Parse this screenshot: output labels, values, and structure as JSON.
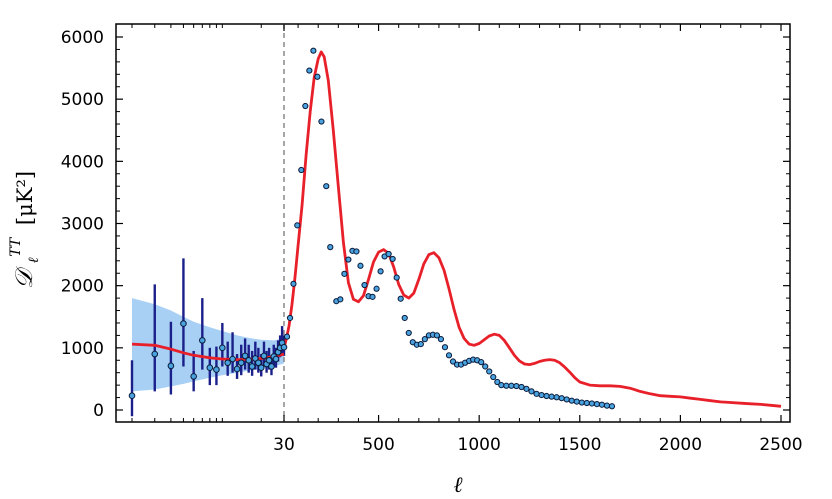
{
  "chart_data": {
    "type": "scatter",
    "xlabel": "ℓ",
    "ylabel": {
      "symbol": "𝒟",
      "subscript": "ℓ",
      "superscript": "TT",
      "units": "[μK²]"
    },
    "x_scale": {
      "low_segment": {
        "type": "log",
        "range": [
          2,
          30
        ]
      },
      "high_segment": {
        "type": "linear",
        "range": [
          30,
          2500
        ]
      }
    },
    "ylim": [
      -200,
      6200
    ],
    "y_ticks": [
      0,
      1000,
      2000,
      3000,
      4000,
      5000,
      6000
    ],
    "x_tick_labels": [
      "30",
      "500",
      "1000",
      "1500",
      "2000",
      "2500"
    ],
    "x_ticks": [
      30,
      500,
      1000,
      1500,
      2000,
      2500
    ],
    "divider_at": 30,
    "colors": {
      "model": "#e8202a",
      "band": "#a8d0f5",
      "errorbars": "#1a1f8a",
      "points": "#4aa3df",
      "divider": "#888888"
    },
    "model_low_ell": [
      {
        "x": 2,
        "y": 1060
      },
      {
        "x": 3,
        "y": 1040
      },
      {
        "x": 4,
        "y": 980
      },
      {
        "x": 5,
        "y": 920
      },
      {
        "x": 6,
        "y": 880
      },
      {
        "x": 8,
        "y": 840
      },
      {
        "x": 10,
        "y": 820
      },
      {
        "x": 13,
        "y": 810
      },
      {
        "x": 16,
        "y": 815
      },
      {
        "x": 20,
        "y": 830
      },
      {
        "x": 25,
        "y": 860
      },
      {
        "x": 30,
        "y": 900
      }
    ],
    "band_low_ell": [
      {
        "x": 2,
        "lo": 300,
        "hi": 1800
      },
      {
        "x": 3,
        "lo": 330,
        "hi": 1700
      },
      {
        "x": 4,
        "lo": 380,
        "hi": 1600
      },
      {
        "x": 5,
        "lo": 420,
        "hi": 1500
      },
      {
        "x": 6,
        "lo": 460,
        "hi": 1420
      },
      {
        "x": 8,
        "lo": 520,
        "hi": 1330
      },
      {
        "x": 10,
        "lo": 560,
        "hi": 1270
      },
      {
        "x": 13,
        "lo": 600,
        "hi": 1200
      },
      {
        "x": 16,
        "lo": 630,
        "hi": 1160
      },
      {
        "x": 20,
        "lo": 660,
        "hi": 1130
      },
      {
        "x": 25,
        "lo": 700,
        "hi": 1120
      },
      {
        "x": 30,
        "lo": 750,
        "hi": 1150
      }
    ],
    "points_low_ell": [
      {
        "x": 2,
        "y": 230,
        "lo": -100,
        "hi": 800
      },
      {
        "x": 3,
        "y": 900,
        "lo": 300,
        "hi": 2020
      },
      {
        "x": 4,
        "y": 710,
        "lo": 250,
        "hi": 1420
      },
      {
        "x": 5,
        "y": 1390,
        "lo": 700,
        "hi": 2440
      },
      {
        "x": 6,
        "y": 540,
        "lo": 300,
        "hi": 950
      },
      {
        "x": 7,
        "y": 1120,
        "lo": 650,
        "hi": 1800
      },
      {
        "x": 8,
        "y": 680,
        "lo": 400,
        "hi": 1000
      },
      {
        "x": 9,
        "y": 650,
        "lo": 400,
        "hi": 1020
      },
      {
        "x": 10,
        "y": 1000,
        "lo": 700,
        "hi": 1400
      },
      {
        "x": 11,
        "y": 760,
        "lo": 550,
        "hi": 1100
      },
      {
        "x": 12,
        "y": 820,
        "lo": 600,
        "hi": 1250
      },
      {
        "x": 13,
        "y": 660,
        "lo": 500,
        "hi": 900
      },
      {
        "x": 14,
        "y": 760,
        "lo": 560,
        "hi": 1050
      },
      {
        "x": 15,
        "y": 870,
        "lo": 650,
        "hi": 1150
      },
      {
        "x": 16,
        "y": 800,
        "lo": 600,
        "hi": 1050
      },
      {
        "x": 17,
        "y": 700,
        "lo": 550,
        "hi": 950
      },
      {
        "x": 18,
        "y": 830,
        "lo": 650,
        "hi": 1100
      },
      {
        "x": 19,
        "y": 760,
        "lo": 600,
        "hi": 1000
      },
      {
        "x": 20,
        "y": 680,
        "lo": 540,
        "hi": 900
      },
      {
        "x": 21,
        "y": 870,
        "lo": 700,
        "hi": 1100
      },
      {
        "x": 22,
        "y": 740,
        "lo": 600,
        "hi": 950
      },
      {
        "x": 23,
        "y": 800,
        "lo": 650,
        "hi": 1000
      },
      {
        "x": 24,
        "y": 700,
        "lo": 560,
        "hi": 880
      },
      {
        "x": 25,
        "y": 860,
        "lo": 700,
        "hi": 1050
      },
      {
        "x": 26,
        "y": 820,
        "lo": 680,
        "hi": 1000
      },
      {
        "x": 27,
        "y": 930,
        "lo": 780,
        "hi": 1120
      },
      {
        "x": 28,
        "y": 1000,
        "lo": 850,
        "hi": 1200
      },
      {
        "x": 29,
        "y": 1080,
        "lo": 900,
        "hi": 1350
      },
      {
        "x": 30,
        "y": 1010,
        "lo": 870,
        "hi": 1200
      }
    ],
    "model_high_ell": [
      {
        "x": 30,
        "y": 1000
      },
      {
        "x": 40,
        "y": 1120
      },
      {
        "x": 55,
        "y": 1350
      },
      {
        "x": 70,
        "y": 1700
      },
      {
        "x": 85,
        "y": 2150
      },
      {
        "x": 100,
        "y": 2650
      },
      {
        "x": 120,
        "y": 3300
      },
      {
        "x": 140,
        "y": 4100
      },
      {
        "x": 160,
        "y": 4800
      },
      {
        "x": 180,
        "y": 5350
      },
      {
        "x": 200,
        "y": 5650
      },
      {
        "x": 215,
        "y": 5760
      },
      {
        "x": 230,
        "y": 5680
      },
      {
        "x": 250,
        "y": 5300
      },
      {
        "x": 275,
        "y": 4500
      },
      {
        "x": 300,
        "y": 3600
      },
      {
        "x": 325,
        "y": 2700
      },
      {
        "x": 350,
        "y": 2050
      },
      {
        "x": 375,
        "y": 1780
      },
      {
        "x": 400,
        "y": 1740
      },
      {
        "x": 425,
        "y": 1840
      },
      {
        "x": 450,
        "y": 2100
      },
      {
        "x": 475,
        "y": 2380
      },
      {
        "x": 500,
        "y": 2540
      },
      {
        "x": 525,
        "y": 2580
      },
      {
        "x": 550,
        "y": 2520
      },
      {
        "x": 575,
        "y": 2300
      },
      {
        "x": 600,
        "y": 2020
      },
      {
        "x": 625,
        "y": 1850
      },
      {
        "x": 650,
        "y": 1800
      },
      {
        "x": 675,
        "y": 1880
      },
      {
        "x": 700,
        "y": 2100
      },
      {
        "x": 725,
        "y": 2350
      },
      {
        "x": 750,
        "y": 2500
      },
      {
        "x": 775,
        "y": 2530
      },
      {
        "x": 800,
        "y": 2450
      },
      {
        "x": 825,
        "y": 2250
      },
      {
        "x": 850,
        "y": 1950
      },
      {
        "x": 875,
        "y": 1620
      },
      {
        "x": 900,
        "y": 1330
      },
      {
        "x": 925,
        "y": 1150
      },
      {
        "x": 950,
        "y": 1060
      },
      {
        "x": 975,
        "y": 1040
      },
      {
        "x": 1000,
        "y": 1070
      },
      {
        "x": 1025,
        "y": 1130
      },
      {
        "x": 1050,
        "y": 1190
      },
      {
        "x": 1075,
        "y": 1220
      },
      {
        "x": 1100,
        "y": 1200
      },
      {
        "x": 1125,
        "y": 1120
      },
      {
        "x": 1150,
        "y": 1000
      },
      {
        "x": 1175,
        "y": 880
      },
      {
        "x": 1200,
        "y": 790
      },
      {
        "x": 1225,
        "y": 740
      },
      {
        "x": 1250,
        "y": 730
      },
      {
        "x": 1275,
        "y": 750
      },
      {
        "x": 1300,
        "y": 780
      },
      {
        "x": 1325,
        "y": 800
      },
      {
        "x": 1350,
        "y": 810
      },
      {
        "x": 1375,
        "y": 800
      },
      {
        "x": 1400,
        "y": 760
      },
      {
        "x": 1425,
        "y": 690
      },
      {
        "x": 1450,
        "y": 610
      },
      {
        "x": 1475,
        "y": 520
      },
      {
        "x": 1500,
        "y": 450
      },
      {
        "x": 1550,
        "y": 400
      },
      {
        "x": 1600,
        "y": 390
      },
      {
        "x": 1650,
        "y": 390
      },
      {
        "x": 1700,
        "y": 380
      },
      {
        "x": 1750,
        "y": 350
      },
      {
        "x": 1800,
        "y": 300
      },
      {
        "x": 1850,
        "y": 260
      },
      {
        "x": 1900,
        "y": 230
      },
      {
        "x": 1950,
        "y": 220
      },
      {
        "x": 2000,
        "y": 210
      },
      {
        "x": 2050,
        "y": 190
      },
      {
        "x": 2100,
        "y": 170
      },
      {
        "x": 2150,
        "y": 150
      },
      {
        "x": 2200,
        "y": 130
      },
      {
        "x": 2250,
        "y": 120
      },
      {
        "x": 2300,
        "y": 110
      },
      {
        "x": 2350,
        "y": 100
      },
      {
        "x": 2400,
        "y": 90
      },
      {
        "x": 2450,
        "y": 75
      },
      {
        "x": 2500,
        "y": 60
      }
    ],
    "points_high_ell": [
      {
        "x": 45,
        "y": 1180
      },
      {
        "x": 60,
        "y": 1480
      },
      {
        "x": 77,
        "y": 2030
      },
      {
        "x": 96,
        "y": 2970
      },
      {
        "x": 116,
        "y": 3860
      },
      {
        "x": 136,
        "y": 4890
      },
      {
        "x": 156,
        "y": 5460
      },
      {
        "x": 176,
        "y": 5780
      },
      {
        "x": 196,
        "y": 5360
      },
      {
        "x": 216,
        "y": 4640
      },
      {
        "x": 240,
        "y": 3600
      },
      {
        "x": 260,
        "y": 2620
      },
      {
        "x": 290,
        "y": 1750
      },
      {
        "x": 310,
        "y": 1780
      },
      {
        "x": 330,
        "y": 2190
      },
      {
        "x": 350,
        "y": 2420
      },
      {
        "x": 370,
        "y": 2560
      },
      {
        "x": 390,
        "y": 2550
      },
      {
        "x": 410,
        "y": 2320
      },
      {
        "x": 430,
        "y": 2010
      },
      {
        "x": 450,
        "y": 1830
      },
      {
        "x": 470,
        "y": 1820
      },
      {
        "x": 490,
        "y": 1950
      },
      {
        "x": 510,
        "y": 2230
      },
      {
        "x": 530,
        "y": 2470
      },
      {
        "x": 550,
        "y": 2510
      },
      {
        "x": 570,
        "y": 2430
      },
      {
        "x": 590,
        "y": 2130
      },
      {
        "x": 610,
        "y": 1790
      },
      {
        "x": 630,
        "y": 1480
      },
      {
        "x": 650,
        "y": 1240
      },
      {
        "x": 670,
        "y": 1090
      },
      {
        "x": 690,
        "y": 1050
      },
      {
        "x": 710,
        "y": 1060
      },
      {
        "x": 730,
        "y": 1140
      },
      {
        "x": 750,
        "y": 1200
      },
      {
        "x": 770,
        "y": 1210
      },
      {
        "x": 790,
        "y": 1200
      },
      {
        "x": 810,
        "y": 1140
      },
      {
        "x": 830,
        "y": 1010
      },
      {
        "x": 850,
        "y": 880
      },
      {
        "x": 870,
        "y": 780
      },
      {
        "x": 890,
        "y": 730
      },
      {
        "x": 910,
        "y": 730
      },
      {
        "x": 930,
        "y": 760
      },
      {
        "x": 950,
        "y": 790
      },
      {
        "x": 970,
        "y": 810
      },
      {
        "x": 990,
        "y": 800
      },
      {
        "x": 1010,
        "y": 770
      },
      {
        "x": 1030,
        "y": 700
      },
      {
        "x": 1050,
        "y": 620
      },
      {
        "x": 1070,
        "y": 530
      },
      {
        "x": 1090,
        "y": 450
      },
      {
        "x": 1110,
        "y": 400
      },
      {
        "x": 1135,
        "y": 390
      },
      {
        "x": 1160,
        "y": 390
      },
      {
        "x": 1185,
        "y": 385
      },
      {
        "x": 1210,
        "y": 370
      },
      {
        "x": 1235,
        "y": 340
      },
      {
        "x": 1260,
        "y": 300
      },
      {
        "x": 1285,
        "y": 260
      },
      {
        "x": 1310,
        "y": 240
      },
      {
        "x": 1335,
        "y": 225
      },
      {
        "x": 1360,
        "y": 215
      },
      {
        "x": 1385,
        "y": 205
      },
      {
        "x": 1410,
        "y": 190
      },
      {
        "x": 1435,
        "y": 170
      },
      {
        "x": 1460,
        "y": 150
      },
      {
        "x": 1485,
        "y": 135
      },
      {
        "x": 1510,
        "y": 120
      },
      {
        "x": 1535,
        "y": 112
      },
      {
        "x": 1560,
        "y": 105
      },
      {
        "x": 1585,
        "y": 95
      },
      {
        "x": 1610,
        "y": 85
      },
      {
        "x": 1635,
        "y": 70
      },
      {
        "x": 1660,
        "y": 60
      }
    ]
  }
}
